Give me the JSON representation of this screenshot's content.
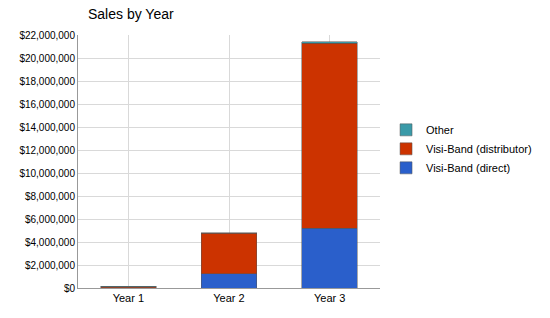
{
  "chart_data": {
    "type": "bar",
    "title": "Sales by Year",
    "categories": [
      "Year 1",
      "Year 2",
      "Year 3"
    ],
    "stacked": true,
    "series": [
      {
        "name": "Visi-Band (direct)",
        "color": "#2a5fcb",
        "values": [
          40000,
          1250000,
          5200000
        ]
      },
      {
        "name": "Visi-Band (distributor)",
        "color": "#cc3300",
        "values": [
          90000,
          3500000,
          16100000
        ]
      },
      {
        "name": "Other",
        "color": "#3a9aa8",
        "values": [
          10000,
          50000,
          100000
        ]
      }
    ],
    "ylim": [
      0,
      22000000
    ],
    "yticks": [
      {
        "value": 0,
        "label": "$0"
      },
      {
        "value": 2000000,
        "label": "$2,000,000"
      },
      {
        "value": 4000000,
        "label": "$4,000,000"
      },
      {
        "value": 6000000,
        "label": "$6,000,000"
      },
      {
        "value": 8000000,
        "label": "$8,000,000"
      },
      {
        "value": 10000000,
        "label": "$10,000,000"
      },
      {
        "value": 12000000,
        "label": "$12,000,000"
      },
      {
        "value": 14000000,
        "label": "$14,000,000"
      },
      {
        "value": 16000000,
        "label": "$16,000,000"
      },
      {
        "value": 18000000,
        "label": "$18,000,000"
      },
      {
        "value": 20000000,
        "label": "$20,000,000"
      },
      {
        "value": 22000000,
        "label": "$22,000,000"
      }
    ],
    "grid": true,
    "legend": "right"
  }
}
